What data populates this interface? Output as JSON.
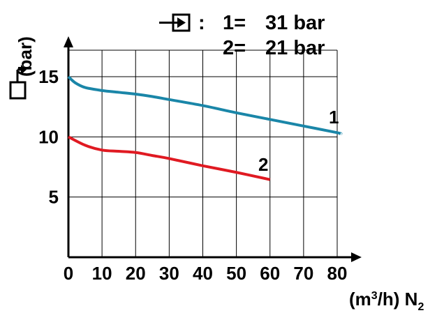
{
  "legend": {
    "separator": ":",
    "entries": [
      {
        "key": "1=",
        "value": "31 bar"
      },
      {
        "key": "2=",
        "value": "21 bar"
      }
    ]
  },
  "chart_data": {
    "type": "line",
    "title": "",
    "ylabel": "(bar)",
    "xlabel": "(m³/h) N₂",
    "xlim": [
      0,
      80
    ],
    "ylim": [
      0,
      20
    ],
    "x_ticks": [
      0,
      10,
      20,
      30,
      40,
      50,
      60,
      70,
      80
    ],
    "y_ticks": [
      5,
      10,
      15
    ],
    "grid": true,
    "series": [
      {
        "name": "1",
        "color": "#1A86A8",
        "x": [
          0,
          2,
          5,
          10,
          15,
          20,
          25,
          30,
          40,
          50,
          60,
          70,
          80,
          81
        ],
        "y": [
          15.0,
          14.5,
          14.1,
          13.85,
          13.7,
          13.55,
          13.35,
          13.1,
          12.6,
          12.0,
          11.45,
          10.9,
          10.35,
          10.25
        ]
      },
      {
        "name": "2",
        "color": "#E01A22",
        "x": [
          0,
          5,
          10,
          15,
          20,
          25,
          30,
          40,
          50,
          60
        ],
        "y": [
          10.0,
          9.3,
          8.9,
          8.8,
          8.7,
          8.45,
          8.2,
          7.6,
          7.05,
          6.45
        ]
      }
    ]
  },
  "icons": {
    "inlet": "inlet-arrow-box-icon",
    "outlet": "outlet-arrow-box-icon"
  }
}
